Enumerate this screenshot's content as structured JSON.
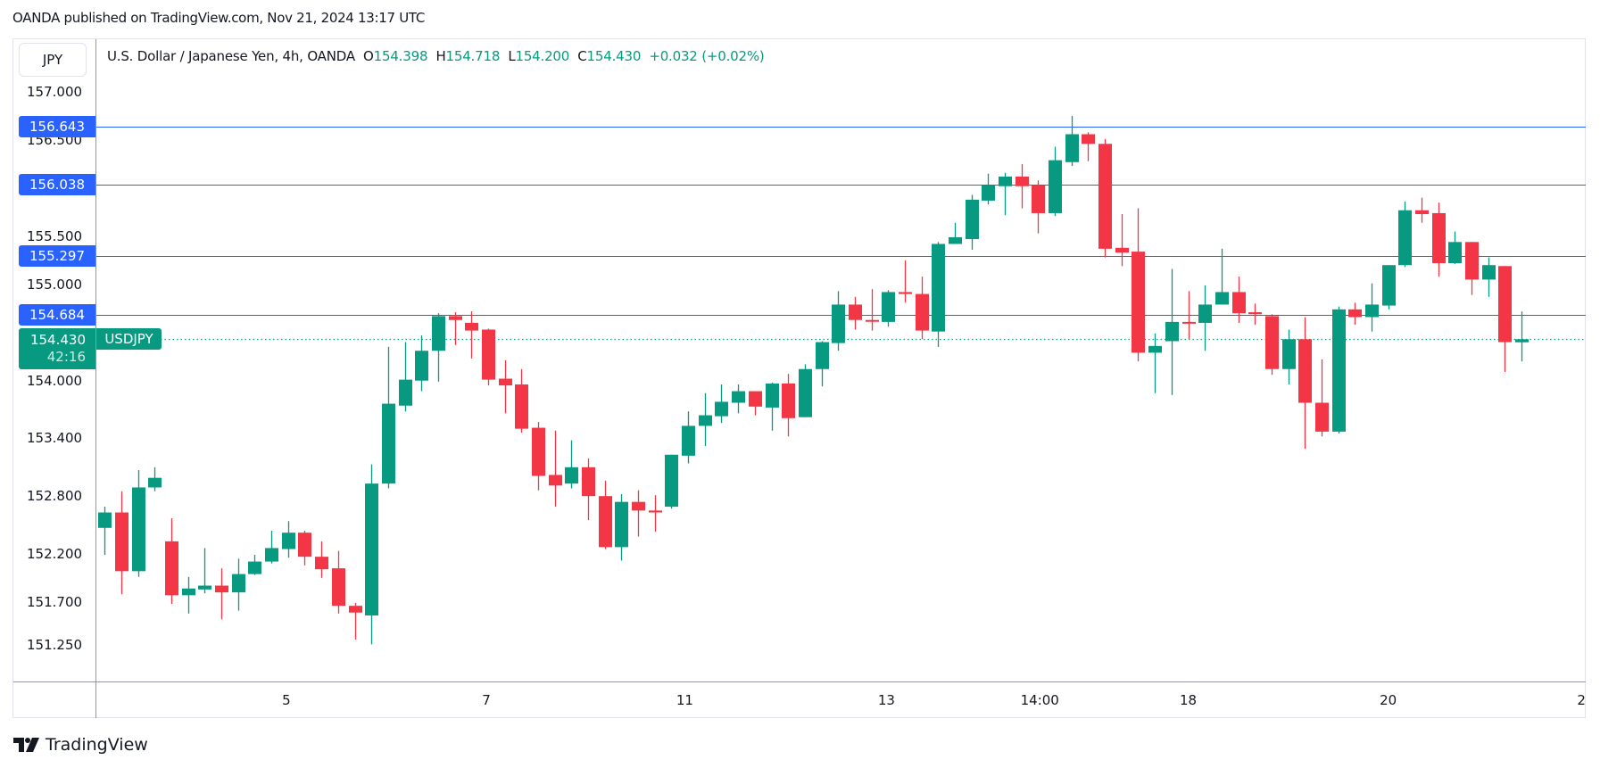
{
  "header": {
    "published": "OANDA published on TradingView.com, Nov 21, 2024 13:17 UTC"
  },
  "toolbar": {
    "currency_button": "JPY"
  },
  "legend": {
    "title": "U.S. Dollar / Japanese Yen, 4h, OANDA",
    "o_label": "O",
    "o": "154.398",
    "h_label": "H",
    "h": "154.718",
    "l_label": "L",
    "l": "154.200",
    "c_label": "C",
    "c": "154.430",
    "change": "+0.032 (+0.02%)"
  },
  "current_price": {
    "value": "154.430",
    "countdown": "42:16",
    "symbol": "USDJPY"
  },
  "colors": {
    "up": "#089981",
    "down": "#f23645",
    "level_line": "#2962ff",
    "text": "#131722"
  },
  "brand": {
    "logo_text": "TradingView"
  },
  "chart_data": {
    "type": "candlestick",
    "symbol": "USDJPY",
    "interval": "4h",
    "ylim": [
      151.0,
      157.3
    ],
    "y_ticks": [
      "157.000",
      "156.500",
      "155.500",
      "155.000",
      "154.000",
      "153.400",
      "152.800",
      "152.200",
      "151.700",
      "151.250"
    ],
    "x_ticks": [
      {
        "label": "5",
        "index": 10.9
      },
      {
        "label": "7",
        "index": 22.9
      },
      {
        "label": "11",
        "index": 34.8
      },
      {
        "label": "13",
        "index": 46.9
      },
      {
        "label": "14:00",
        "index": 56.1
      },
      {
        "label": "18",
        "index": 65.0
      },
      {
        "label": "20",
        "index": 77.0
      },
      {
        "label": "2",
        "index": 88.6
      }
    ],
    "levels": [
      "156.643",
      "156.038",
      "155.297",
      "154.684"
    ],
    "last_price": 154.43,
    "candles_ohlc": [
      [
        152.47,
        152.69,
        152.19,
        152.63
      ],
      [
        152.63,
        152.85,
        151.78,
        152.02
      ],
      [
        152.02,
        153.07,
        151.96,
        152.89
      ],
      [
        152.89,
        153.1,
        152.85,
        152.99
      ],
      [
        152.33,
        152.57,
        151.68,
        151.77
      ],
      [
        151.77,
        151.96,
        151.58,
        151.84
      ],
      [
        151.83,
        152.26,
        151.79,
        151.87
      ],
      [
        151.87,
        152.05,
        151.52,
        151.8
      ],
      [
        151.8,
        152.15,
        151.61,
        151.99
      ],
      [
        151.99,
        152.19,
        151.98,
        152.12
      ],
      [
        152.12,
        152.44,
        152.1,
        152.26
      ],
      [
        152.25,
        152.54,
        152.16,
        152.42
      ],
      [
        152.42,
        152.44,
        152.08,
        152.17
      ],
      [
        152.17,
        152.33,
        151.95,
        152.04
      ],
      [
        152.05,
        152.23,
        151.58,
        151.66
      ],
      [
        151.66,
        151.69,
        151.31,
        151.59
      ],
      [
        151.56,
        153.13,
        151.26,
        152.93
      ],
      [
        152.93,
        154.35,
        152.88,
        153.76
      ],
      [
        153.74,
        154.4,
        153.68,
        154.01
      ],
      [
        154.0,
        154.47,
        153.89,
        154.31
      ],
      [
        154.31,
        154.7,
        153.99,
        154.67
      ],
      [
        154.67,
        154.71,
        154.37,
        154.63
      ],
      [
        154.6,
        154.72,
        154.23,
        154.52
      ],
      [
        154.53,
        154.54,
        153.95,
        154.01
      ],
      [
        154.02,
        154.21,
        153.66,
        153.95
      ],
      [
        153.96,
        154.12,
        153.46,
        153.5
      ],
      [
        153.51,
        153.57,
        152.86,
        153.01
      ],
      [
        153.02,
        153.48,
        152.69,
        152.91
      ],
      [
        152.93,
        153.38,
        152.88,
        153.1
      ],
      [
        153.1,
        153.19,
        152.55,
        152.8
      ],
      [
        152.8,
        152.96,
        152.25,
        152.27
      ],
      [
        152.27,
        152.82,
        152.13,
        152.74
      ],
      [
        152.74,
        152.86,
        152.38,
        152.65
      ],
      [
        152.65,
        152.81,
        152.43,
        152.63
      ],
      [
        152.69,
        153.23,
        152.67,
        153.23
      ],
      [
        153.22,
        153.68,
        153.14,
        153.53
      ],
      [
        153.53,
        153.87,
        153.32,
        153.64
      ],
      [
        153.63,
        153.96,
        153.56,
        153.78
      ],
      [
        153.77,
        153.96,
        153.66,
        153.89
      ],
      [
        153.89,
        153.89,
        153.64,
        153.73
      ],
      [
        153.72,
        153.98,
        153.48,
        153.97
      ],
      [
        153.97,
        154.07,
        153.42,
        153.61
      ],
      [
        153.62,
        154.17,
        153.62,
        154.12
      ],
      [
        154.12,
        154.41,
        153.94,
        154.4
      ],
      [
        154.39,
        154.93,
        154.31,
        154.79
      ],
      [
        154.79,
        154.87,
        154.53,
        154.63
      ],
      [
        154.63,
        154.95,
        154.52,
        154.62
      ],
      [
        154.61,
        154.94,
        154.56,
        154.92
      ],
      [
        154.92,
        155.25,
        154.81,
        154.9
      ],
      [
        154.9,
        155.08,
        154.43,
        154.52
      ],
      [
        154.51,
        155.44,
        154.35,
        155.42
      ],
      [
        155.42,
        155.64,
        155.42,
        155.49
      ],
      [
        155.47,
        155.93,
        155.36,
        155.88
      ],
      [
        155.87,
        156.15,
        155.83,
        156.03
      ],
      [
        156.02,
        156.16,
        155.72,
        156.12
      ],
      [
        156.12,
        156.25,
        155.79,
        156.02
      ],
      [
        156.03,
        156.08,
        155.53,
        155.74
      ],
      [
        155.74,
        156.43,
        155.71,
        156.29
      ],
      [
        156.27,
        156.75,
        156.23,
        156.56
      ],
      [
        156.56,
        156.58,
        156.28,
        156.46
      ],
      [
        156.46,
        156.51,
        155.28,
        155.37
      ],
      [
        155.38,
        155.73,
        155.19,
        155.33
      ],
      [
        155.34,
        155.79,
        154.2,
        154.29
      ],
      [
        154.29,
        154.49,
        153.87,
        154.36
      ],
      [
        154.41,
        155.16,
        153.85,
        154.61
      ],
      [
        154.61,
        154.93,
        154.43,
        154.6
      ],
      [
        154.6,
        154.99,
        154.31,
        154.79
      ],
      [
        154.79,
        155.37,
        154.79,
        154.92
      ],
      [
        154.92,
        155.08,
        154.6,
        154.7
      ],
      [
        154.71,
        154.8,
        154.58,
        154.69
      ],
      [
        154.67,
        154.69,
        154.06,
        154.12
      ],
      [
        154.12,
        154.53,
        153.96,
        154.43
      ],
      [
        154.43,
        154.66,
        153.29,
        153.77
      ],
      [
        153.77,
        154.22,
        153.42,
        153.47
      ],
      [
        153.47,
        154.77,
        153.45,
        154.74
      ],
      [
        154.74,
        154.81,
        154.58,
        154.66
      ],
      [
        154.66,
        155.01,
        154.51,
        154.79
      ],
      [
        154.78,
        155.2,
        154.74,
        155.2
      ],
      [
        155.2,
        155.86,
        155.18,
        155.77
      ],
      [
        155.77,
        155.9,
        155.64,
        155.73
      ],
      [
        155.74,
        155.85,
        155.08,
        155.22
      ],
      [
        155.22,
        155.55,
        155.21,
        155.44
      ],
      [
        155.44,
        155.44,
        154.89,
        155.05
      ],
      [
        155.05,
        155.28,
        154.87,
        155.2
      ],
      [
        155.19,
        155.19,
        154.09,
        154.4
      ],
      [
        154.398,
        154.718,
        154.2,
        154.43
      ]
    ]
  }
}
